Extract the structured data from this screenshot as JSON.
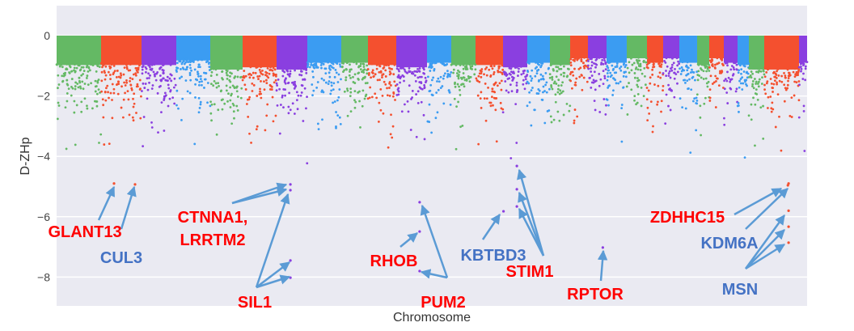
{
  "chart_data": {
    "type": "scatter",
    "subtype": "manhattan",
    "title": "",
    "xlabel": "Chromosome",
    "ylabel": "D-ZHp",
    "ylim": [
      -9,
      1
    ],
    "yticks": [
      0,
      -2,
      -4,
      -6,
      -8
    ],
    "yticklabels": [
      "0",
      "−2",
      "−4",
      "−6",
      "−8"
    ],
    "grid": true,
    "colors": [
      "#64b964",
      "#f4502f",
      "#8a3fe0",
      "#3b9cf2"
    ],
    "background": "#eaeaf2",
    "segments": [
      {
        "color": 0,
        "length": 55,
        "band": -1.3
      },
      {
        "color": 1,
        "length": 50,
        "band": -1.3
      },
      {
        "color": 2,
        "length": 43,
        "band": -1.3
      },
      {
        "color": 3,
        "length": 42,
        "band": -1.1
      },
      {
        "color": 0,
        "length": 40,
        "band": -1.5
      },
      {
        "color": 1,
        "length": 42,
        "band": -1.4
      },
      {
        "color": 2,
        "length": 38,
        "band": -1.5
      },
      {
        "color": 3,
        "length": 42,
        "band": -1.2
      },
      {
        "color": 0,
        "length": 33,
        "band": -1.2
      },
      {
        "color": 1,
        "length": 35,
        "band": -1.3
      },
      {
        "color": 2,
        "length": 38,
        "band": -1.4
      },
      {
        "color": 3,
        "length": 30,
        "band": -1.2
      },
      {
        "color": 0,
        "length": 30,
        "band": -1.3
      },
      {
        "color": 1,
        "length": 34,
        "band": -1.3
      },
      {
        "color": 2,
        "length": 30,
        "band": -1.4
      },
      {
        "color": 3,
        "length": 28,
        "band": -1.2
      },
      {
        "color": 0,
        "length": 25,
        "band": -1.3
      },
      {
        "color": 1,
        "length": 22,
        "band": -1.0
      },
      {
        "color": 2,
        "length": 23,
        "band": -1.0
      },
      {
        "color": 3,
        "length": 25,
        "band": -1.2
      },
      {
        "color": 0,
        "length": 25,
        "band": -1.0
      },
      {
        "color": 1,
        "length": 20,
        "band": -1.2
      },
      {
        "color": 2,
        "length": 20,
        "band": -1.0
      },
      {
        "color": 3,
        "length": 22,
        "band": -1.2
      },
      {
        "color": 0,
        "length": 15,
        "band": -1.3
      },
      {
        "color": 1,
        "length": 18,
        "band": -1.0
      },
      {
        "color": 2,
        "length": 17,
        "band": -1.2
      },
      {
        "color": 3,
        "length": 14,
        "band": -1.3
      },
      {
        "color": 0,
        "length": 19,
        "band": -1.5
      },
      {
        "color": 1,
        "length": 43,
        "band": -1.5
      },
      {
        "color": 2,
        "length": 10,
        "band": -1.2
      }
    ],
    "highlighted_points": [
      {
        "gene": "GLANT13",
        "segment": 1,
        "frac": 0.32,
        "value": -4.9
      },
      {
        "gene": "CUL3",
        "segment": 1,
        "frac": 0.84,
        "value": -4.93
      },
      {
        "gene": "CTNNA1, LRRTM2",
        "segment": 6,
        "frac": 0.45,
        "value": -4.93
      },
      {
        "gene": "CTNNA1, LRRTM2",
        "segment": 6,
        "frac": 0.45,
        "value": -5.12
      },
      {
        "gene": "SIL1",
        "segment": 6,
        "frac": 0.45,
        "value": -7.45
      },
      {
        "gene": "SIL1",
        "segment": 6,
        "frac": 0.45,
        "value": -8.02
      },
      {
        "gene": "PUM2",
        "segment": 10,
        "frac": 0.76,
        "value": -5.52
      },
      {
        "gene": "RHOB",
        "segment": 10,
        "frac": 0.76,
        "value": -6.49
      },
      {
        "gene": "PUM2",
        "segment": 10,
        "frac": 0.76,
        "value": -7.8
      },
      {
        "gene": "KBTBD3",
        "segment": 14,
        "frac": 0.02,
        "value": -5.82
      },
      {
        "gene": "STIM1",
        "segment": 14,
        "frac": 0.57,
        "value": -4.32
      },
      {
        "gene": "STIM1",
        "segment": 14,
        "frac": 0.57,
        "value": -5.09
      },
      {
        "gene": "STIM1",
        "segment": 14,
        "frac": 0.57,
        "value": -5.66
      },
      {
        "gene": "RPTOR",
        "segment": 18,
        "frac": 0.8,
        "value": -7.02
      },
      {
        "gene": "ZDHHC15",
        "segment": 29,
        "frac": 0.68,
        "value": -4.96
      },
      {
        "gene": "KDM6A",
        "segment": 29,
        "frac": 0.7,
        "value": -4.9
      },
      {
        "gene": "MSN",
        "segment": 29,
        "frac": 0.7,
        "value": -5.8
      },
      {
        "gene": "MSN",
        "segment": 29,
        "frac": 0.7,
        "value": -6.33
      },
      {
        "gene": "MSN",
        "segment": 29,
        "frac": 0.7,
        "value": -6.86
      }
    ],
    "annotations": [
      {
        "id": "glant13",
        "text": "GLANT13",
        "color": "#ff0000"
      },
      {
        "id": "cul3",
        "text": "CUL3",
        "color": "#4472c4"
      },
      {
        "id": "ctnna1",
        "text": "CTNNA1,",
        "color": "#ff0000"
      },
      {
        "id": "lrrtm2",
        "text": "LRRTM2",
        "color": "#ff0000"
      },
      {
        "id": "sil1",
        "text": "SIL1",
        "color": "#ff0000"
      },
      {
        "id": "rhob",
        "text": "RHOB",
        "color": "#ff0000"
      },
      {
        "id": "pum2",
        "text": "PUM2",
        "color": "#ff0000"
      },
      {
        "id": "kbtbd3",
        "text": "KBTBD3",
        "color": "#4472c4"
      },
      {
        "id": "stim1",
        "text": "STIM1",
        "color": "#ff0000"
      },
      {
        "id": "rptor",
        "text": "RPTOR",
        "color": "#ff0000"
      },
      {
        "id": "zdhhc15",
        "text": "ZDHHC15",
        "color": "#ff0000"
      },
      {
        "id": "kdm6a",
        "text": "KDM6A",
        "color": "#4472c4"
      },
      {
        "id": "msn",
        "text": "MSN",
        "color": "#4472c4"
      }
    ],
    "arrow_color": "#5b9bd5"
  }
}
